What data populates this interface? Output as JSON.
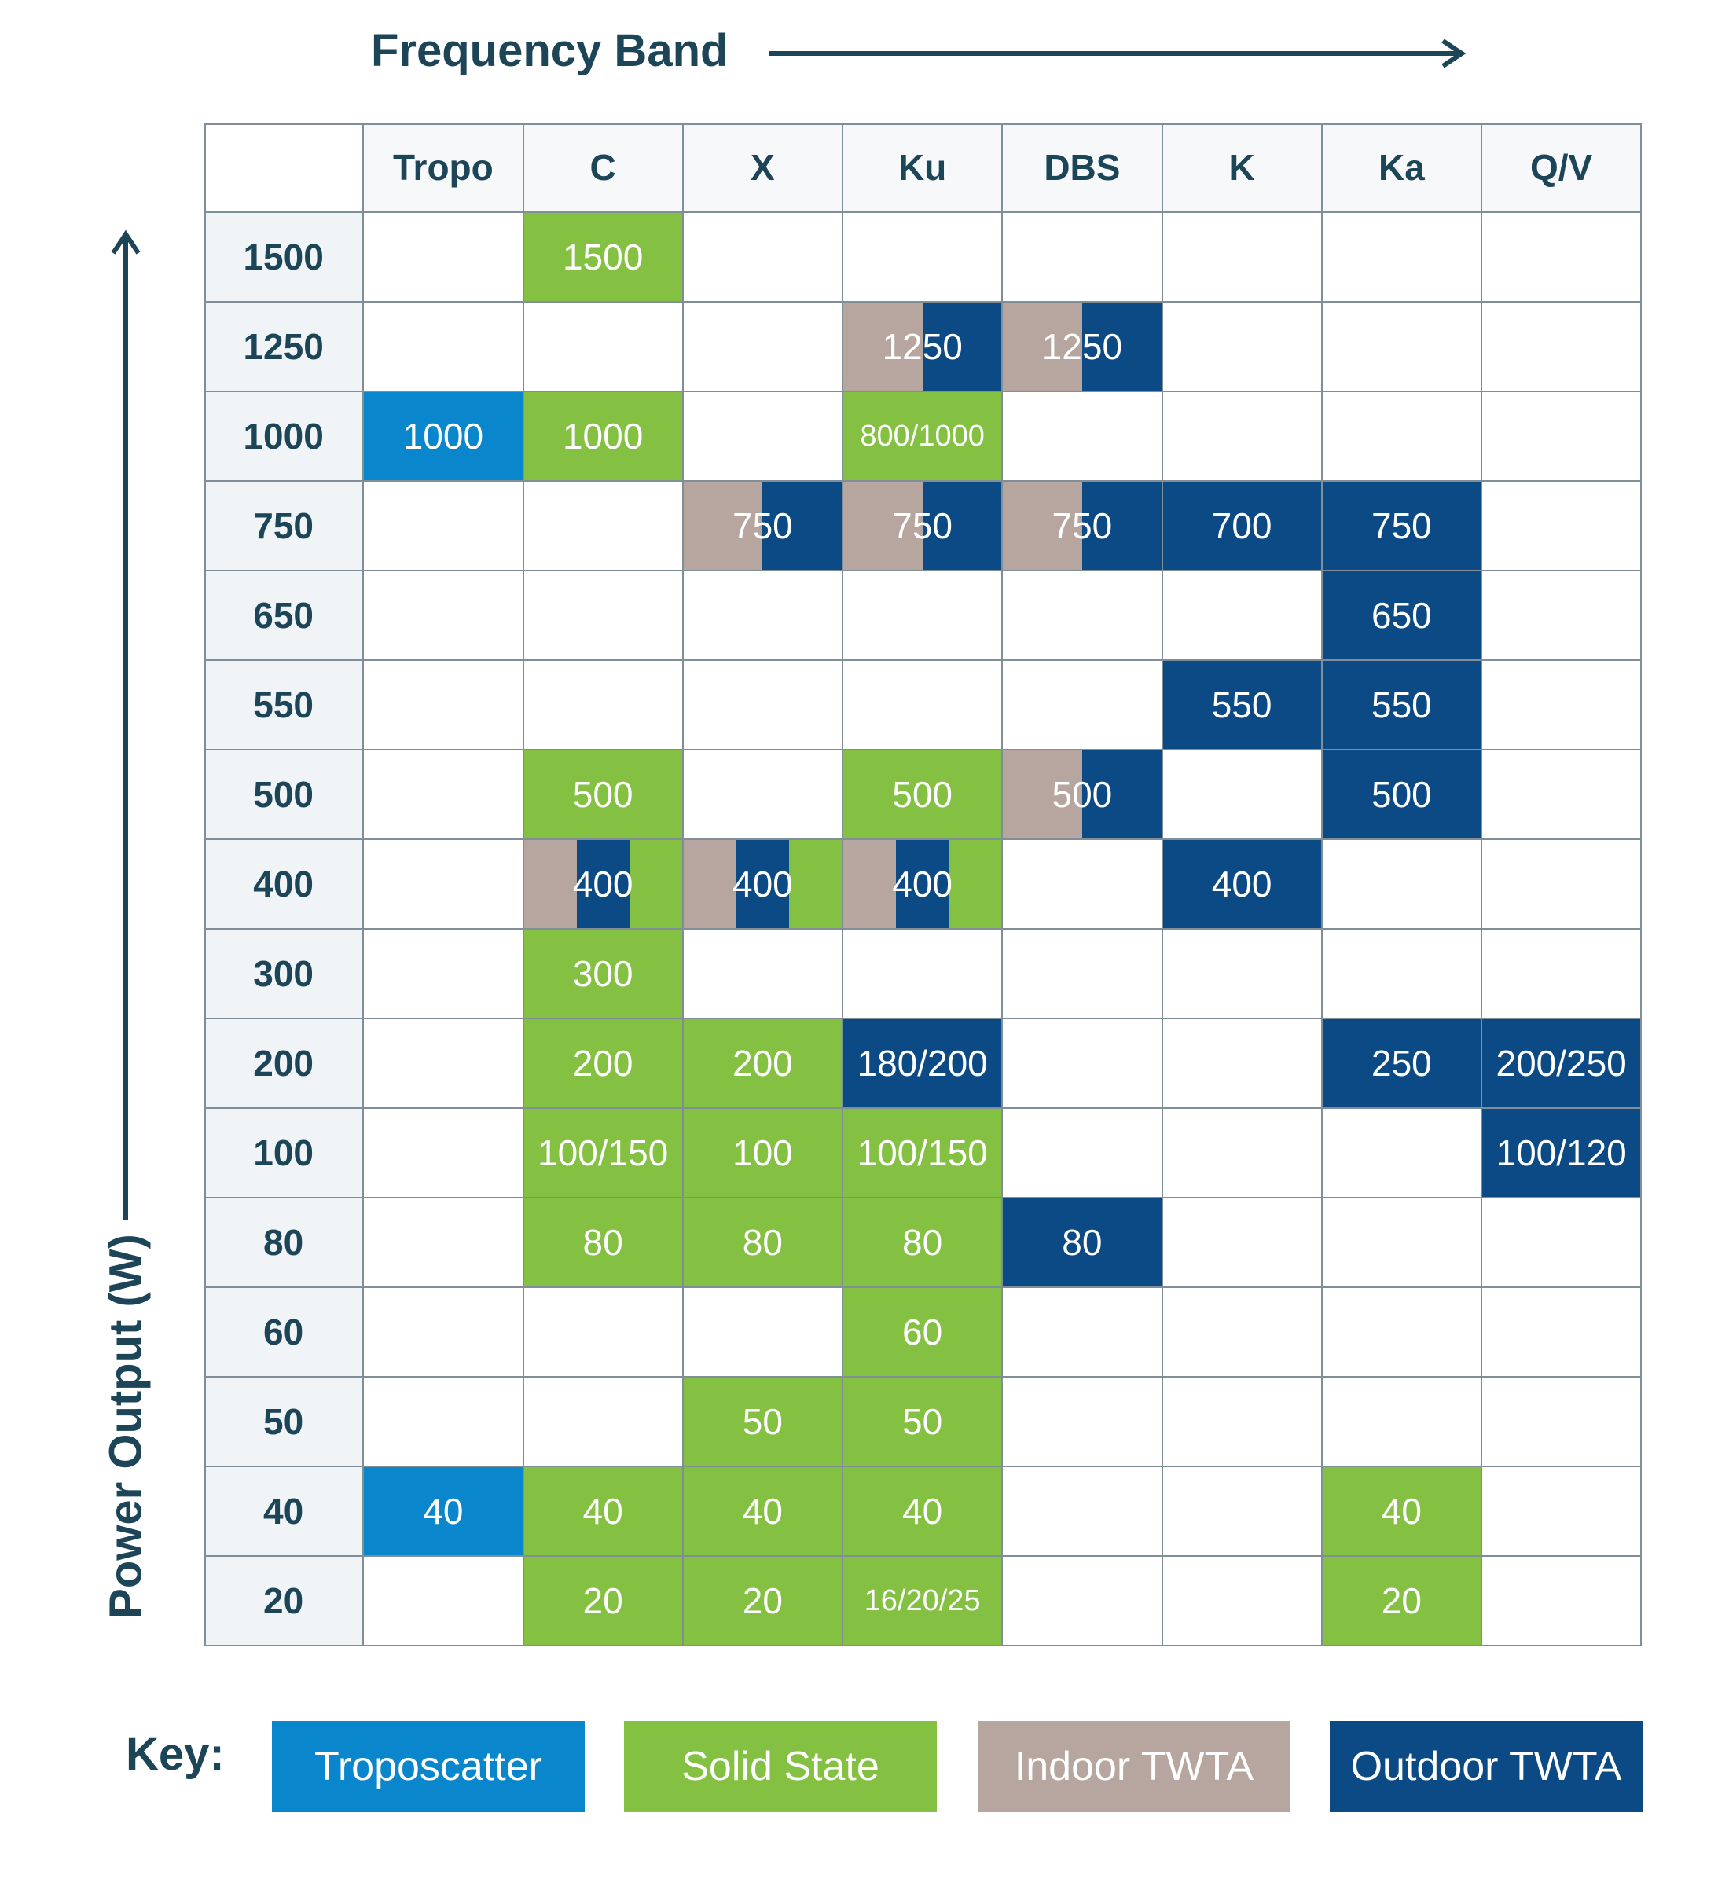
{
  "x_axis_title": "Frequency Band",
  "y_axis_title": "Power Output (W)",
  "colors": {
    "troposcatter": "#0a87cc",
    "solid_state": "#84c143",
    "indoor_twta": "#b7a59f",
    "outdoor_twta": "#0c4a85"
  },
  "key": {
    "label": "Key:",
    "items": [
      {
        "code": "T",
        "label": "Troposcatter",
        "color": "#0a87cc"
      },
      {
        "code": "S",
        "label": "Solid State",
        "color": "#84c143"
      },
      {
        "code": "I",
        "label": "Indoor TWTA",
        "color": "#b7a59f"
      },
      {
        "code": "O",
        "label": "Outdoor TWTA",
        "color": "#0c4a85"
      }
    ]
  },
  "chart_data": {
    "type": "table",
    "xlabel": "Frequency Band",
    "ylabel": "Power Output (W)",
    "columns": [
      "Tropo",
      "C",
      "X",
      "Ku",
      "DBS",
      "K",
      "Ka",
      "Q/V"
    ],
    "rows": [
      "1500",
      "1250",
      "1000",
      "750",
      "650",
      "550",
      "500",
      "400",
      "300",
      "200",
      "100",
      "80",
      "60",
      "50",
      "40",
      "20"
    ],
    "cells": [
      [
        "",
        "1500",
        "",
        "",
        "",
        "",
        "",
        ""
      ],
      [
        "",
        "",
        "",
        "1250",
        "1250",
        "",
        "",
        ""
      ],
      [
        "1000",
        "1000",
        "",
        "800/1000",
        "",
        "",
        "",
        ""
      ],
      [
        "",
        "",
        "750",
        "750",
        "750",
        "700",
        "750",
        ""
      ],
      [
        "",
        "",
        "",
        "",
        "",
        "",
        "650",
        ""
      ],
      [
        "",
        "",
        "",
        "",
        "",
        "550",
        "550",
        ""
      ],
      [
        "",
        "500",
        "",
        "500",
        "500",
        "",
        "500",
        ""
      ],
      [
        "",
        "400",
        "400",
        "400",
        "",
        "400",
        "",
        ""
      ],
      [
        "",
        "300",
        "",
        "",
        "",
        "",
        "",
        ""
      ],
      [
        "",
        "200",
        "200",
        "180/200",
        "",
        "",
        "250",
        "200/250"
      ],
      [
        "",
        "100/150",
        "100",
        "100/150",
        "",
        "",
        "",
        "100/120"
      ],
      [
        "",
        "80",
        "80",
        "80",
        "80",
        "",
        "",
        ""
      ],
      [
        "",
        "",
        "",
        "60",
        "",
        "",
        "",
        ""
      ],
      [
        "",
        "",
        "50",
        "50",
        "",
        "",
        "",
        ""
      ],
      [
        "40",
        "40",
        "40",
        "40",
        "",
        "",
        "40",
        ""
      ],
      [
        "",
        "20",
        "20",
        "16/20/25",
        "",
        "",
        "20",
        ""
      ]
    ],
    "technologies": [
      [
        "",
        "S",
        "",
        "",
        "",
        "",
        "",
        ""
      ],
      [
        "",
        "",
        "",
        "IO",
        "IO",
        "",
        "",
        ""
      ],
      [
        "T",
        "S",
        "",
        "S",
        "",
        "",
        "",
        ""
      ],
      [
        "",
        "",
        "IO",
        "IO",
        "IO",
        "O",
        "O",
        ""
      ],
      [
        "",
        "",
        "",
        "",
        "",
        "",
        "O",
        ""
      ],
      [
        "",
        "",
        "",
        "",
        "",
        "O",
        "O",
        ""
      ],
      [
        "",
        "S",
        "",
        "S",
        "IO",
        "",
        "O",
        ""
      ],
      [
        "",
        "IOS",
        "IOS",
        "IOS",
        "",
        "O",
        "",
        ""
      ],
      [
        "",
        "S",
        "",
        "",
        "",
        "",
        "",
        ""
      ],
      [
        "",
        "S",
        "S",
        "O",
        "",
        "",
        "O",
        "O"
      ],
      [
        "",
        "S",
        "S",
        "S",
        "",
        "",
        "",
        "O"
      ],
      [
        "",
        "S",
        "S",
        "S",
        "O",
        "",
        "",
        ""
      ],
      [
        "",
        "",
        "",
        "S",
        "",
        "",
        "",
        ""
      ],
      [
        "",
        "",
        "S",
        "S",
        "",
        "",
        "",
        ""
      ],
      [
        "T",
        "S",
        "S",
        "S",
        "",
        "",
        "S",
        ""
      ],
      [
        "",
        "S",
        "S",
        "S",
        "",
        "",
        "S",
        ""
      ]
    ]
  }
}
